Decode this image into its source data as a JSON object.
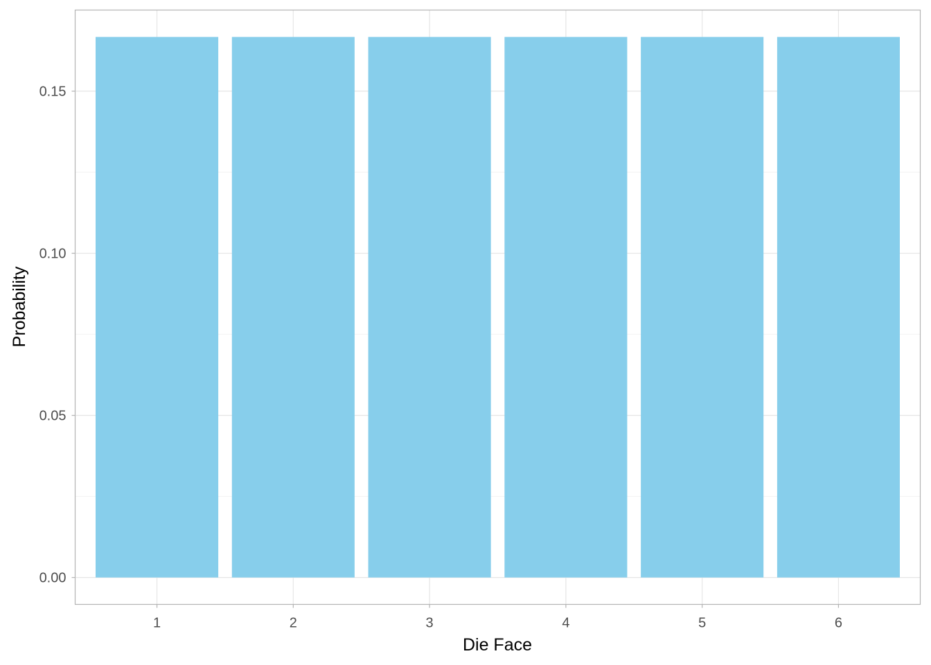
{
  "chart_data": {
    "type": "bar",
    "title": "",
    "xlabel": "Die Face",
    "ylabel": "Probability",
    "categories": [
      "1",
      "2",
      "3",
      "4",
      "5",
      "6"
    ],
    "values": [
      0.1667,
      0.1667,
      0.1667,
      0.1667,
      0.1667,
      0.1667
    ],
    "ylim": [
      -0.0083,
      0.175
    ],
    "yticks": [
      0.0,
      0.05,
      0.1,
      0.15
    ],
    "ytick_labels": [
      "0.00",
      "0.05",
      "0.10",
      "0.15"
    ],
    "grid": true,
    "legend": "none",
    "colors": {
      "bar": "#87CEEB",
      "grid_major": "#e6e6e6",
      "grid_minor": "#f2f2f2",
      "panel_border": "#b3b3b3"
    }
  }
}
